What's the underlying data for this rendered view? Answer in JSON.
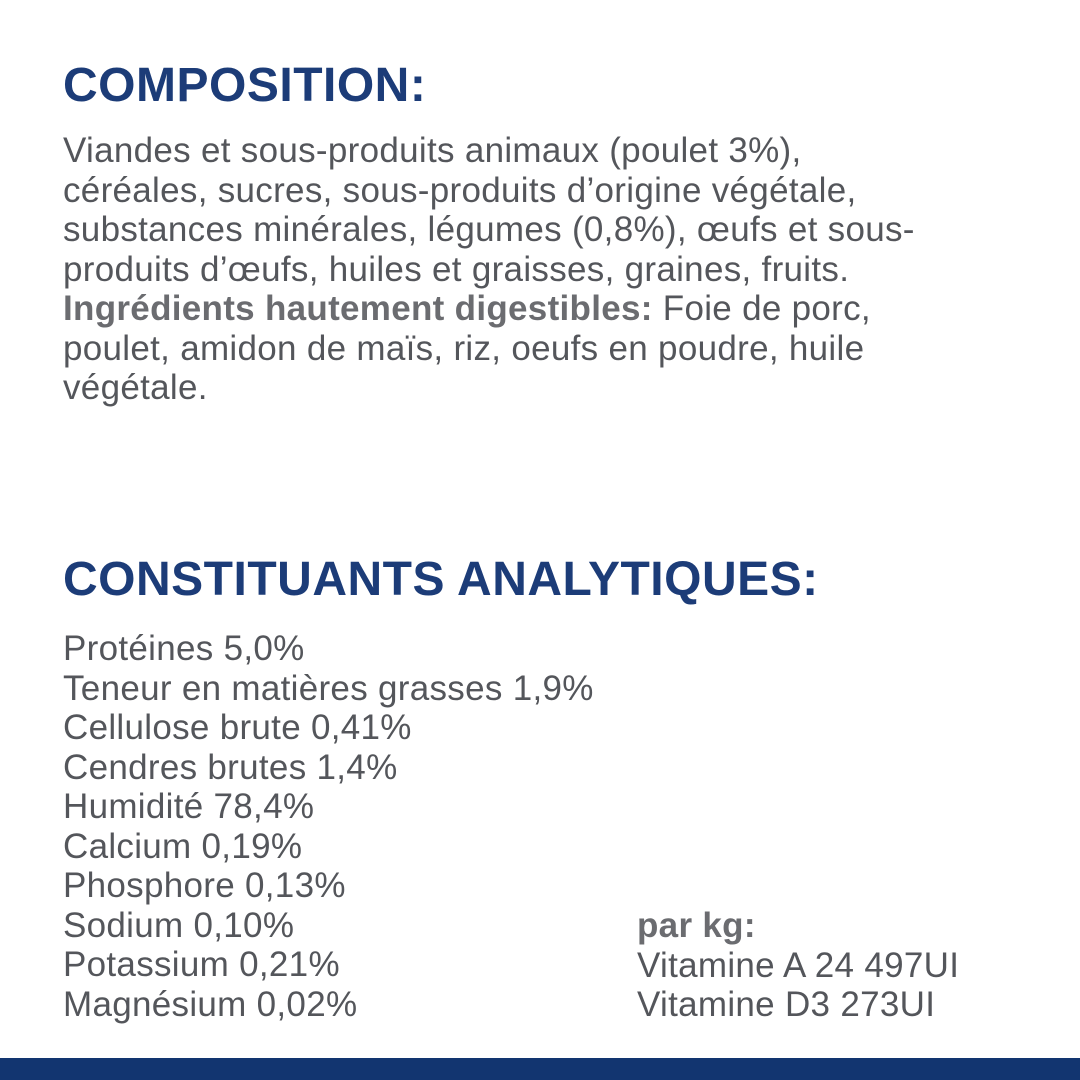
{
  "page": {
    "background_color": "#ffffff",
    "heading_color": "#1c3c78",
    "body_text_color": "#54565b",
    "bold_text_color": "#6b6c70",
    "bottom_bar_color": "#123570"
  },
  "composition": {
    "heading": "COMPOSITION:",
    "lines": [
      {
        "text": "Viandes et sous-produits animaux (poulet 3%),"
      },
      {
        "text": "céréales, sucres, sous-produits d’origine végétale,"
      },
      {
        "text": "substances minérales, légumes (0,8%), œufs et sous-"
      },
      {
        "text": "produits d’œufs, huiles et graisses, graines, fruits."
      },
      {
        "bold": "Ingrédients hautement digestibles:",
        "text": " Foie de porc,"
      },
      {
        "text": "poulet, amidon de maïs, riz, oeufs en poudre, huile"
      },
      {
        "text": "végétale."
      }
    ]
  },
  "analytical": {
    "heading": "CONSTITUANTS ANALYTIQUES:",
    "constituents": [
      "Protéines 5,0%",
      "Teneur en matières grasses 1,9%",
      "Cellulose brute 0,41%",
      "Cendres brutes 1,4%",
      "Humidité 78,4%",
      "Calcium 0,19%",
      "Phosphore 0,13%",
      "Sodium 0,10%",
      "Potassium 0,21%",
      "Magnésium 0,02%"
    ],
    "per_kg": {
      "label": "par kg:",
      "items": [
        "Vitamine A 24 497UI",
        "Vitamine D3 273UI"
      ]
    }
  }
}
